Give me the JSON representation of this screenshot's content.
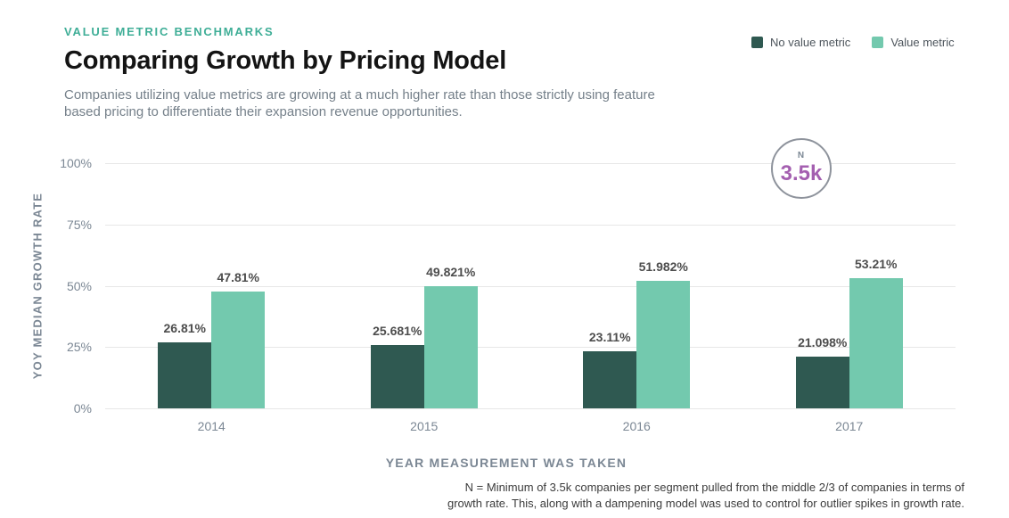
{
  "header": {
    "kicker": "VALUE METRIC BENCHMARKS",
    "title": "Comparing Growth by Pricing Model",
    "subtitle": "Companies utilizing value metrics are growing at a much higher rate than those strictly using feature based pricing to differentiate their expansion revenue opportunities."
  },
  "legend": [
    {
      "label": "No value metric",
      "color": "#2f5951"
    },
    {
      "label": "Value metric",
      "color": "#73c9ae"
    }
  ],
  "badge": {
    "label": "N",
    "value": "3.5k"
  },
  "footnote": {
    "line1": "N = Minimum of 3.5k companies per segment pulled from the middle 2/3 of companies in terms of",
    "line2": "growth rate. This, along with a dampening model was used to control for outlier spikes in growth rate."
  },
  "chart_data": {
    "type": "bar",
    "categories": [
      "2014",
      "2015",
      "2016",
      "2017"
    ],
    "series": [
      {
        "name": "No value metric",
        "color": "#2f5951",
        "values": [
          26.81,
          25.681,
          23.11,
          21.098
        ],
        "labels": [
          "26.81%",
          "25.681%",
          "23.11%",
          "21.098%"
        ]
      },
      {
        "name": "Value metric",
        "color": "#73c9ae",
        "values": [
          47.81,
          49.821,
          51.982,
          53.21
        ],
        "labels": [
          "47.81%",
          "49.821%",
          "51.982%",
          "53.21%"
        ]
      }
    ],
    "title": "Comparing Growth by Pricing Model",
    "xlabel": "YEAR MEASUREMENT WAS TAKEN",
    "ylabel": "YOY MEDIAN GROWTH RATE",
    "ylim": [
      0,
      100
    ],
    "yticks": [
      "0%",
      "25%",
      "50%",
      "75%",
      "100%"
    ],
    "grid": true,
    "legend_position": "top-right",
    "annotation": "N = 3.5k"
  },
  "colors": {
    "accent_teal": "#3fae97",
    "bar_dark": "#2f5951",
    "bar_light": "#73c9ae",
    "purple": "#a45fb0",
    "axis_gray": "#7b8794",
    "gridline": "#e7e7e7"
  }
}
